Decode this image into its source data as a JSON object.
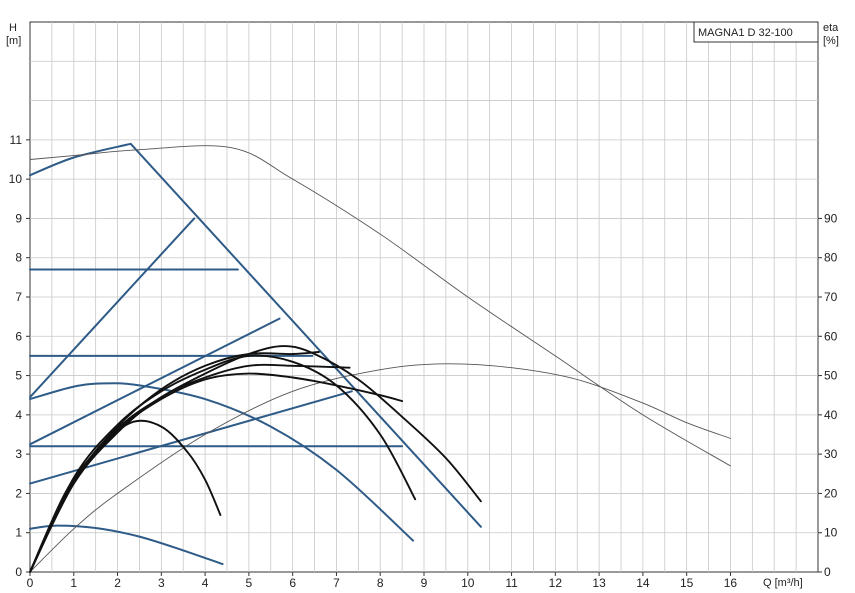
{
  "chart_data": {
    "type": "line",
    "title": "MAGNA1 D 32-100",
    "xlabel": "Q [m³/h]",
    "ylabel_left": [
      "H",
      "[m]"
    ],
    "ylabel_right": [
      "eta",
      "[%]"
    ],
    "xlim": [
      0,
      18
    ],
    "ylim_left": [
      0,
      14
    ],
    "ylim_right": [
      0,
      140
    ],
    "x_ticks": [
      "0",
      "1",
      "2",
      "3",
      "4",
      "5",
      "6",
      "7",
      "8",
      "9",
      "10",
      "11",
      "12",
      "13",
      "14",
      "15",
      "16"
    ],
    "y_left_ticks": [
      "0",
      "1",
      "2",
      "3",
      "4",
      "5",
      "6",
      "7",
      "8",
      "9",
      "10",
      "11"
    ],
    "y_right_ticks": [
      "0",
      "10",
      "20",
      "30",
      "40",
      "50",
      "60",
      "70",
      "80",
      "90"
    ],
    "grid": true,
    "colors": {
      "pump_curves": "#2e5b87",
      "system_curves": "#111111",
      "efficiency": "#555555",
      "grid": "#c8c8c8"
    },
    "series": [
      {
        "kind": "head",
        "points": [
          [
            0,
            10.1
          ],
          [
            1.0,
            10.55
          ],
          [
            2.3,
            10.9
          ],
          [
            10.3,
            1.15
          ]
        ]
      },
      {
        "kind": "head",
        "points": [
          [
            0,
            7.7
          ],
          [
            4.75,
            7.7
          ]
        ]
      },
      {
        "kind": "head",
        "points": [
          [
            0,
            5.5
          ],
          [
            6.45,
            5.5
          ]
        ]
      },
      {
        "kind": "head",
        "points": [
          [
            0,
            4.45
          ],
          [
            3.75,
            9.0
          ]
        ]
      },
      {
        "kind": "head",
        "points": [
          [
            0,
            3.25
          ],
          [
            5.7,
            6.45
          ]
        ]
      },
      {
        "kind": "head",
        "points": [
          [
            0,
            2.25
          ],
          [
            7.35,
            4.6
          ]
        ]
      },
      {
        "kind": "head",
        "points": [
          [
            0,
            3.2
          ],
          [
            8.5,
            3.2
          ]
        ]
      },
      {
        "kind": "head",
        "points": [
          [
            0,
            4.4
          ],
          [
            1.0,
            4.72
          ],
          [
            1.7,
            4.8
          ],
          [
            2.5,
            4.75
          ],
          [
            4.0,
            4.4
          ],
          [
            5.5,
            3.7
          ],
          [
            7.0,
            2.6
          ],
          [
            8.75,
            0.8
          ]
        ]
      },
      {
        "kind": "head",
        "points": [
          [
            0,
            1.1
          ],
          [
            0.6,
            1.18
          ],
          [
            1.5,
            1.12
          ],
          [
            2.5,
            0.9
          ],
          [
            3.5,
            0.55
          ],
          [
            4.4,
            0.2
          ]
        ]
      },
      {
        "kind": "efficiency",
        "points": [
          [
            0,
            105
          ],
          [
            1.0,
            106
          ],
          [
            2.5,
            107.5
          ],
          [
            4.6,
            108
          ],
          [
            6.0,
            100
          ],
          [
            8.0,
            86
          ],
          [
            10.0,
            70
          ],
          [
            12.0,
            55
          ],
          [
            14.0,
            40
          ],
          [
            16.0,
            27
          ]
        ]
      },
      {
        "kind": "efficiency",
        "points": [
          [
            0,
            0
          ],
          [
            1.0,
            11
          ],
          [
            2.0,
            20
          ],
          [
            4.0,
            35
          ],
          [
            6.0,
            46
          ],
          [
            8.0,
            51.5
          ],
          [
            9.5,
            53
          ],
          [
            11.0,
            52
          ],
          [
            12.5,
            49
          ],
          [
            14.0,
            43
          ],
          [
            15.0,
            38
          ],
          [
            16.0,
            34
          ]
        ]
      },
      {
        "kind": "system",
        "points": [
          [
            0,
            0
          ],
          [
            1.0,
            2.3
          ],
          [
            2.0,
            3.65
          ],
          [
            3.0,
            4.45
          ],
          [
            4.0,
            5.05
          ],
          [
            5.0,
            5.55
          ],
          [
            5.8,
            5.75
          ],
          [
            6.5,
            5.55
          ],
          [
            7.5,
            4.9
          ],
          [
            8.5,
            3.95
          ],
          [
            9.5,
            2.9
          ],
          [
            10.3,
            1.8
          ]
        ]
      },
      {
        "kind": "system",
        "points": [
          [
            0,
            0
          ],
          [
            1.0,
            2.4
          ],
          [
            2.0,
            3.75
          ],
          [
            3.0,
            4.6
          ],
          [
            4.0,
            5.15
          ],
          [
            5.0,
            5.5
          ],
          [
            6.0,
            5.35
          ],
          [
            7.0,
            4.75
          ],
          [
            8.0,
            3.5
          ],
          [
            8.8,
            1.85
          ]
        ]
      },
      {
        "kind": "system",
        "points": [
          [
            0,
            0
          ],
          [
            1.0,
            2.25
          ],
          [
            2.0,
            3.55
          ],
          [
            3.0,
            4.45
          ],
          [
            4.0,
            4.95
          ],
          [
            5.0,
            5.25
          ],
          [
            6.0,
            5.25
          ],
          [
            7.3,
            5.2
          ]
        ]
      },
      {
        "kind": "system",
        "points": [
          [
            0,
            0
          ],
          [
            1.0,
            2.3
          ],
          [
            2.0,
            3.6
          ],
          [
            3.0,
            4.4
          ],
          [
            4.0,
            4.9
          ],
          [
            5.0,
            5.05
          ],
          [
            6.0,
            4.95
          ],
          [
            7.0,
            4.75
          ],
          [
            8.0,
            4.5
          ],
          [
            8.5,
            4.35
          ]
        ]
      },
      {
        "kind": "system",
        "points": [
          [
            0,
            0
          ],
          [
            1.0,
            2.3
          ],
          [
            2.0,
            3.7
          ],
          [
            3.0,
            4.65
          ],
          [
            4.0,
            5.25
          ],
          [
            5.0,
            5.55
          ],
          [
            6.0,
            5.55
          ],
          [
            6.6,
            5.6
          ]
        ]
      },
      {
        "kind": "system",
        "points": [
          [
            0,
            0
          ],
          [
            0.8,
            2.0
          ],
          [
            1.5,
            3.05
          ],
          [
            2.3,
            3.8
          ],
          [
            3.0,
            3.7
          ],
          [
            3.6,
            3.05
          ],
          [
            4.0,
            2.35
          ],
          [
            4.35,
            1.45
          ]
        ]
      }
    ]
  }
}
